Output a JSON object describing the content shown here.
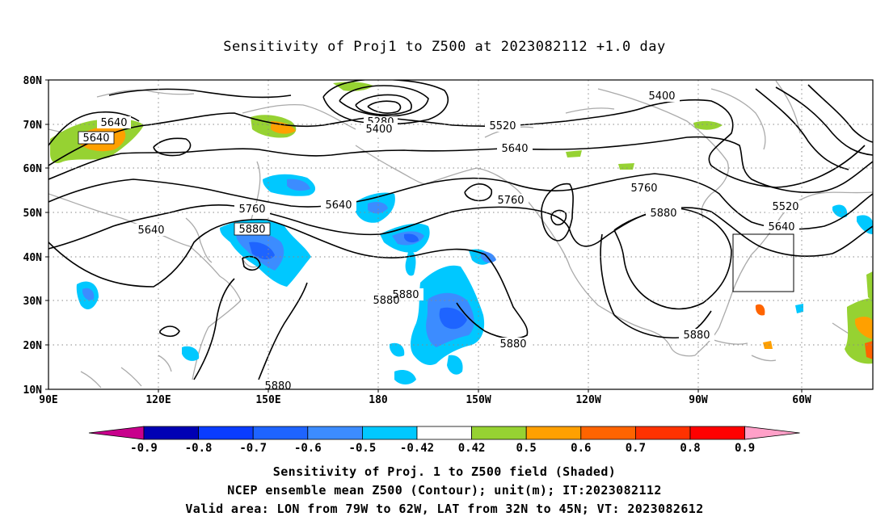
{
  "title": "Sensitivity of Proj1 to Z500 at 2023082112 +1.0 day",
  "lat_labels": [
    "80N",
    "70N",
    "60N",
    "50N",
    "40N",
    "30N",
    "20N",
    "10N"
  ],
  "lon_labels": [
    "90E",
    "120E",
    "150E",
    "180",
    "150W",
    "120W",
    "90W",
    "60W"
  ],
  "contour_labels": [
    "5640",
    "5640",
    "5280",
    "5400",
    "5520",
    "5640",
    "5400",
    "5640",
    "5760",
    "5640",
    "5760",
    "5760",
    "5880",
    "5880",
    "5520",
    "5640",
    "5880",
    "5880",
    "5880",
    "5880",
    "5880"
  ],
  "colorbar": {
    "labels": [
      "-0.9",
      "-0.8",
      "-0.7",
      "-0.6",
      "-0.5",
      "-0.42",
      "0.42",
      "0.5",
      "0.6",
      "0.7",
      "0.8",
      "0.9"
    ],
    "colors": [
      "#0000b4",
      "#0a3cff",
      "#1e64ff",
      "#3c8cff",
      "#00c8ff",
      "#ffffff",
      "#96d232",
      "#ffa000",
      "#ff6400",
      "#ff3200",
      "#ff0000"
    ],
    "low_end_color": "#c8008c",
    "high_end_color": "#ffa0c8"
  },
  "valid_area": {
    "lon_from": "79W",
    "lon_to": "62W",
    "lat_from": "32N",
    "lat_to": "45N"
  },
  "captions": [
    "Sensitivity of Proj. 1 to Z500 field (Shaded)",
    "NCEP ensemble mean Z500 (Contour); unit(m); IT:2023082112",
    "Valid area: LON from 79W to 62W, LAT from 32N to 45N; VT: 2023082612"
  ]
}
